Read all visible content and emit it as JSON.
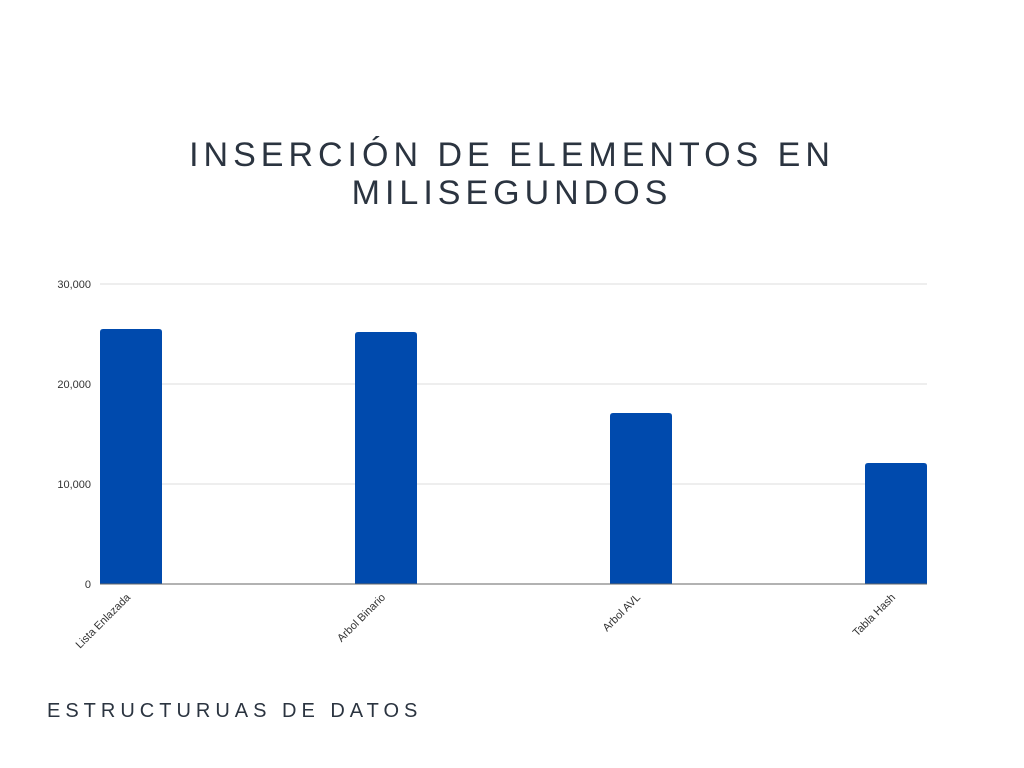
{
  "chart_data": {
    "type": "bar",
    "title_lines": [
      "INSERCIÓN DE ELEMENTOS EN",
      "MILISEGUNDOS"
    ],
    "xlabel": "ESTRUCTURUAS DE DATOS",
    "ylabel": "",
    "categories": [
      "Lista Enlazada",
      "Arbol Binario",
      "Arbol AVL",
      "Tabla Hash"
    ],
    "values": [
      25500,
      25200,
      17100,
      12100
    ],
    "ylim": [
      0,
      30000
    ],
    "yticks": [
      0,
      10000,
      20000,
      30000
    ],
    "ytick_labels": [
      "0",
      "10,000",
      "20,000",
      "30,000"
    ],
    "grid": true,
    "legend": "none",
    "bar_color": "#004aad",
    "gridline_color": "#dddddd",
    "axis_color": "#666666"
  }
}
